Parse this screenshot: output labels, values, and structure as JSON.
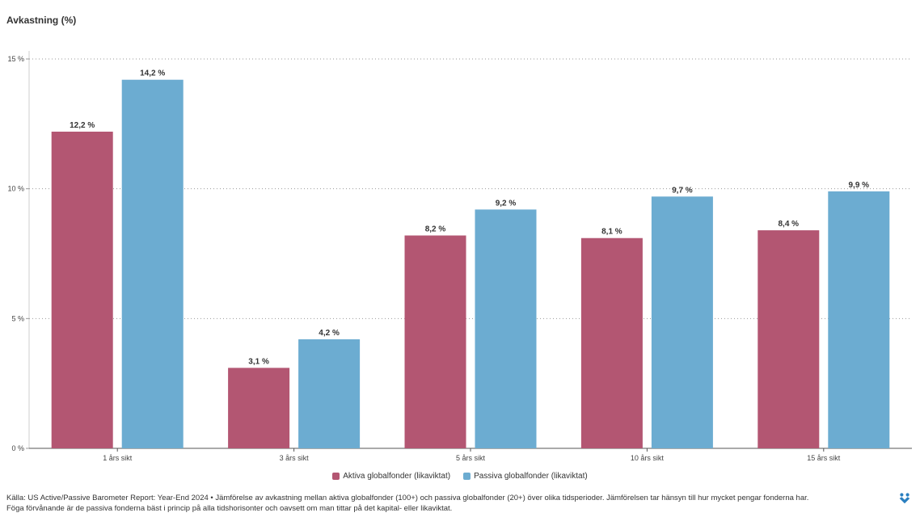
{
  "chart_data": {
    "type": "bar",
    "ylabel": "Avkastning (%)",
    "categories": [
      "1 års sikt",
      "3 års sikt",
      "5 års sikt",
      "10 års sikt",
      "15 års sikt"
    ],
    "series": [
      {
        "name": "Aktiva globalfonder (likaviktat)",
        "color": "#b35672",
        "values": [
          12.2,
          3.1,
          8.2,
          8.1,
          8.4
        ],
        "labels": [
          "12,2 %",
          "3,1 %",
          "8,2 %",
          "8,1 %",
          "8,4 %"
        ]
      },
      {
        "name": "Passiva globalfonder (likaviktat)",
        "color": "#6cacd1",
        "values": [
          14.2,
          4.2,
          9.2,
          9.7,
          9.9
        ],
        "labels": [
          "14,2 %",
          "4,2 %",
          "9,2 %",
          "9,7 %",
          "9,9 %"
        ]
      }
    ],
    "ylim": [
      0,
      15
    ],
    "yticks": [
      0,
      5,
      10,
      15
    ],
    "ytick_labels": [
      "0 %",
      "5 %",
      "10 %",
      "15 %"
    ],
    "grid": true,
    "legend_position": "bottom"
  },
  "footer": {
    "line1": "Källa: US Active/Passive Barometer Report: Year-End 2024 • Jämförelse av avkastning mellan aktiva globalfonder (100+) och passiva globalfonder (20+) över olika tidsperioder. Jämförelsen tar hänsyn till hur mycket pengar fonderna har.",
    "line2": "Föga förvånande är de passiva fonderna bäst i princip på alla tidshorisonter och oavsett om man tittar på det kapital- eller likaviktat."
  },
  "logo": {
    "icon": "brand-logo-icon",
    "color": "#2a7fc0"
  }
}
